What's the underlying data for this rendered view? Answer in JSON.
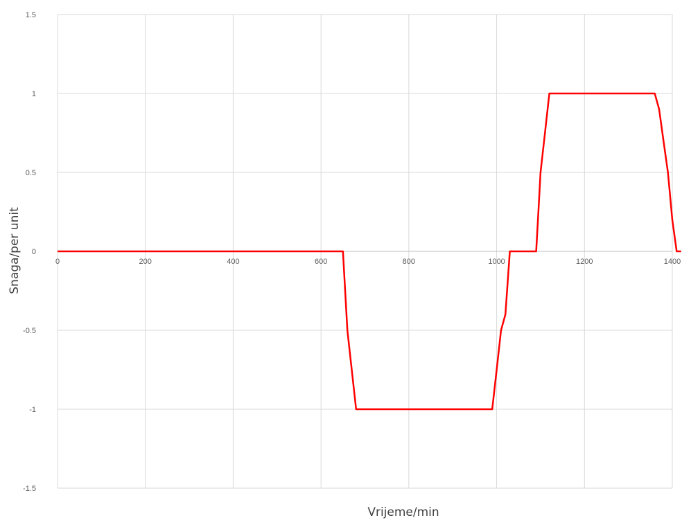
{
  "chart_data": {
    "type": "line",
    "title": "",
    "xlabel": "Vrijeme/min",
    "ylabel": "Snaga/per unit",
    "xlim": [
      0,
      1400
    ],
    "ylim": [
      -1.5,
      1.5
    ],
    "x_ticks": [
      "0",
      "200",
      "400",
      "600",
      "800",
      "1000",
      "1200",
      "1400"
    ],
    "y_ticks": [
      "1.5",
      "1",
      "0.5",
      "0",
      "-0.5",
      "-1",
      "-1.5"
    ],
    "grid": true,
    "legend": "none",
    "series": [
      {
        "color": "#ff0000",
        "x": [
          0,
          650,
          660,
          670,
          680,
          990,
          1000,
          1010,
          1020,
          1030,
          1090,
          1095,
          1100,
          1110,
          1120,
          1360,
          1370,
          1380,
          1390,
          1400,
          1410,
          1420
        ],
        "y": [
          0,
          0,
          -0.5,
          -0.75,
          -1,
          -1,
          -0.75,
          -0.5,
          -0.4,
          0,
          0,
          0.25,
          0.5,
          0.75,
          1,
          1,
          0.9,
          0.7,
          0.5,
          0.2,
          0,
          0
        ]
      }
    ]
  }
}
